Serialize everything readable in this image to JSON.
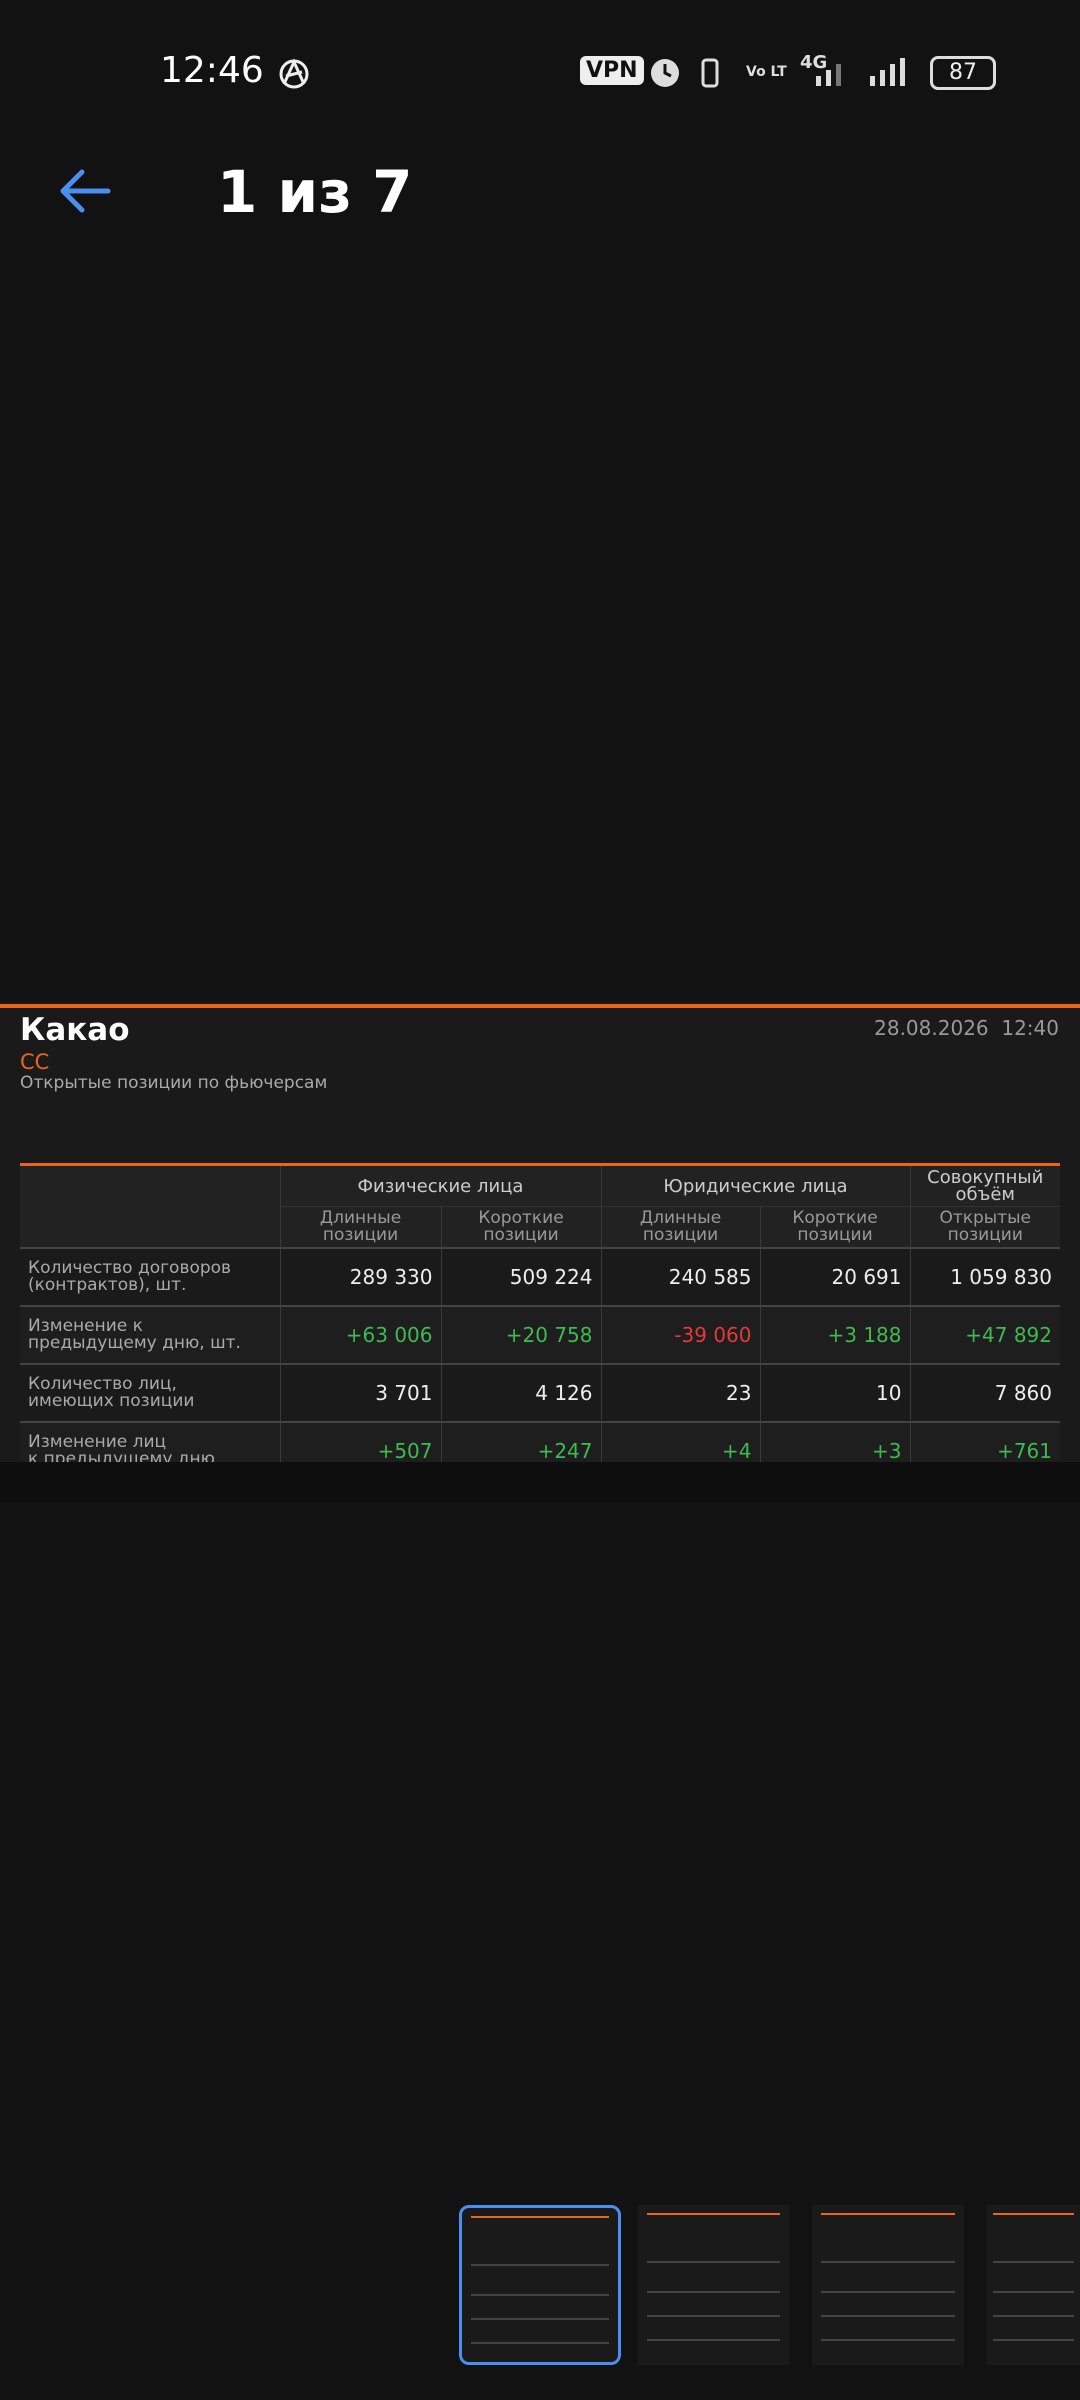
{
  "status_bar": {
    "time": "12:46",
    "vpn": "VPN",
    "network": "4G",
    "battery": "87"
  },
  "header": {
    "title": "1 из 7"
  },
  "image": {
    "title": "Какао",
    "datetime": "28.08.2026  12:40",
    "ticker": "CC",
    "subtitle": "Открытые позиции по фьючерсам",
    "table": {
      "groups": [
        "Физические лица",
        "Юридические лица",
        "Совокупный\nобъём"
      ],
      "subheaders": [
        "Длинные\nпозиции",
        "Короткие\nпозиции",
        "Длинные\nпозиции",
        "Короткие\nпозиции",
        "Открытые\nпозиции"
      ],
      "rows": [
        {
          "label": "Количество договоров\n(контрактов), шт.",
          "cells": [
            "289 330",
            "509 224",
            "240 585",
            "20 691",
            "1 059 830"
          ]
        },
        {
          "label": "Изменение к\nпредыдущему дню, шт.",
          "cells": [
            "+63 006",
            "+20 758",
            "-39 060",
            "+3 188",
            "+47 892"
          ]
        },
        {
          "label": "Количество лиц,\nимеющих позиции",
          "cells": [
            "3 701",
            "4 126",
            "23",
            "10",
            "7 860"
          ]
        },
        {
          "label": "Изменение лиц\nк предыдущему дню",
          "cells": [
            "+507",
            "+247",
            "+4",
            "+3",
            "+761"
          ]
        }
      ]
    }
  }
}
